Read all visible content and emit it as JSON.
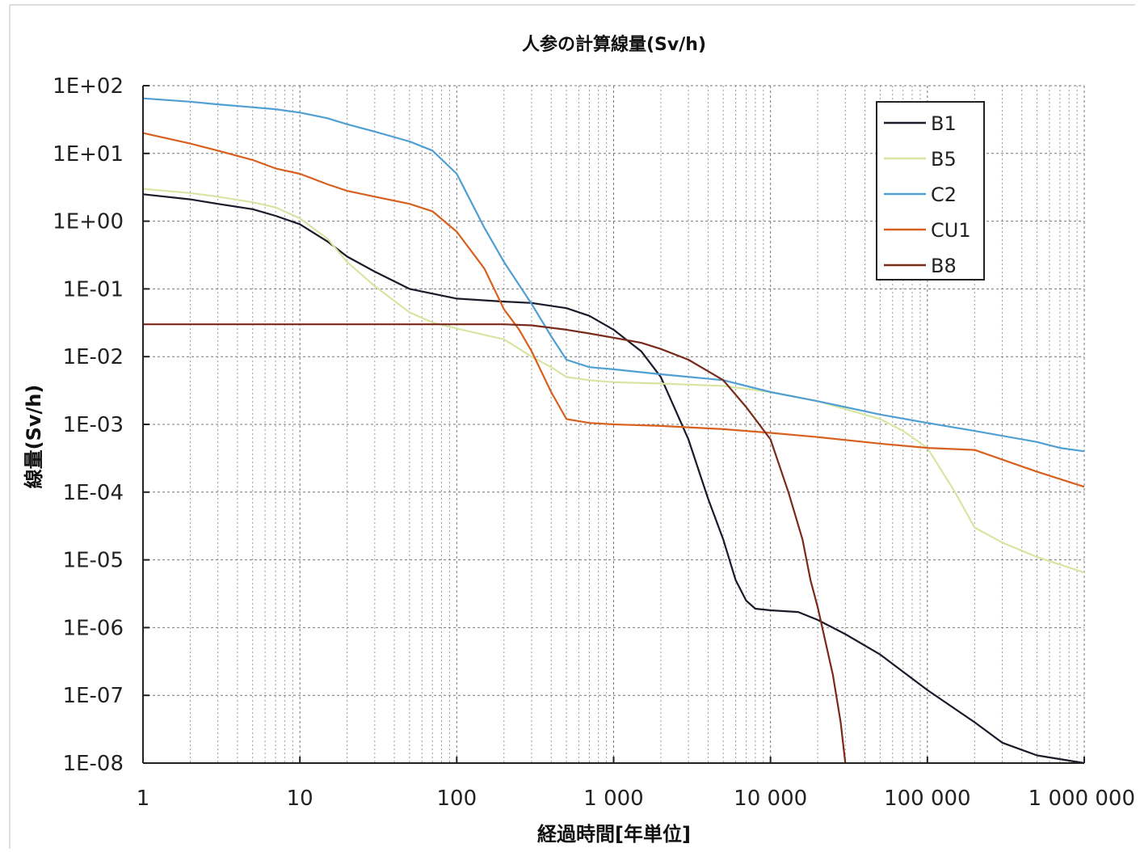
{
  "chart_data": {
    "type": "line",
    "title": "人参の計算線量(Sv/h)",
    "xlabel": "経過時間[年単位]",
    "ylabel": "線量(Sv/h)",
    "x_scale": "log",
    "y_scale": "log",
    "xlim": [
      1,
      1000000
    ],
    "ylim": [
      1e-08,
      100
    ],
    "grid": true,
    "legend_position": "top-right",
    "x_ticks": [
      {
        "value": 1,
        "label": "1"
      },
      {
        "value": 10,
        "label": "10"
      },
      {
        "value": 100,
        "label": "100"
      },
      {
        "value": 1000,
        "label": "1 000"
      },
      {
        "value": 10000,
        "label": "10 000"
      },
      {
        "value": 100000,
        "label": "100 000"
      },
      {
        "value": 1000000,
        "label": "1 000 000"
      }
    ],
    "y_ticks": [
      {
        "value": 100,
        "label": "1E+02"
      },
      {
        "value": 10,
        "label": "1E+01"
      },
      {
        "value": 1,
        "label": "1E+00"
      },
      {
        "value": 0.1,
        "label": "1E-01"
      },
      {
        "value": 0.01,
        "label": "1E-02"
      },
      {
        "value": 0.001,
        "label": "1E-03"
      },
      {
        "value": 0.0001,
        "label": "1E-04"
      },
      {
        "value": 1e-05,
        "label": "1E-05"
      },
      {
        "value": 1e-06,
        "label": "1E-06"
      },
      {
        "value": 1e-07,
        "label": "1E-07"
      },
      {
        "value": 1e-08,
        "label": "1E-08"
      }
    ],
    "series": [
      {
        "name": "B1",
        "color": "#1a1a2a",
        "points": [
          [
            1,
            2.5
          ],
          [
            2,
            2.1
          ],
          [
            3,
            1.8
          ],
          [
            5,
            1.5
          ],
          [
            7,
            1.2
          ],
          [
            10,
            0.9
          ],
          [
            15,
            0.5
          ],
          [
            20,
            0.3
          ],
          [
            30,
            0.18
          ],
          [
            50,
            0.1
          ],
          [
            100,
            0.072
          ],
          [
            200,
            0.065
          ],
          [
            300,
            0.062
          ],
          [
            500,
            0.052
          ],
          [
            700,
            0.04
          ],
          [
            1000,
            0.025
          ],
          [
            1500,
            0.012
          ],
          [
            2000,
            0.005
          ],
          [
            3000,
            0.0006
          ],
          [
            4000,
            8e-05
          ],
          [
            5000,
            2e-05
          ],
          [
            6000,
            5e-06
          ],
          [
            7000,
            2.5e-06
          ],
          [
            8000,
            1.9e-06
          ],
          [
            10000,
            1.8e-06
          ],
          [
            15000,
            1.7e-06
          ],
          [
            20000,
            1.3e-06
          ],
          [
            30000,
            8e-07
          ],
          [
            50000,
            4e-07
          ],
          [
            100000,
            1.2e-07
          ],
          [
            200000,
            4e-08
          ],
          [
            300000,
            2e-08
          ],
          [
            500000,
            1.3e-08
          ],
          [
            1000000,
            1e-08
          ]
        ]
      },
      {
        "name": "B5",
        "color": "#d6e6a2",
        "points": [
          [
            1,
            3.0
          ],
          [
            2,
            2.6
          ],
          [
            3,
            2.3
          ],
          [
            5,
            1.9
          ],
          [
            7,
            1.6
          ],
          [
            10,
            1.1
          ],
          [
            15,
            0.55
          ],
          [
            20,
            0.25
          ],
          [
            30,
            0.11
          ],
          [
            50,
            0.045
          ],
          [
            70,
            0.032
          ],
          [
            100,
            0.026
          ],
          [
            200,
            0.018
          ],
          [
            300,
            0.01
          ],
          [
            400,
            0.007
          ],
          [
            500,
            0.005
          ],
          [
            700,
            0.0045
          ],
          [
            1000,
            0.0042
          ],
          [
            2000,
            0.004
          ],
          [
            5000,
            0.0037
          ],
          [
            10000,
            0.003
          ],
          [
            20000,
            0.0022
          ],
          [
            50000,
            0.0012
          ],
          [
            70000,
            0.0008
          ],
          [
            100000,
            0.00045
          ],
          [
            150000,
            0.0001
          ],
          [
            200000,
            3e-05
          ],
          [
            300000,
            1.8e-05
          ],
          [
            500000,
            1.1e-05
          ],
          [
            1000000,
            6.5e-06
          ]
        ]
      },
      {
        "name": "C2",
        "color": "#4f9fd2",
        "points": [
          [
            1,
            65
          ],
          [
            2,
            58
          ],
          [
            3,
            53
          ],
          [
            5,
            48
          ],
          [
            7,
            45
          ],
          [
            10,
            40
          ],
          [
            15,
            33
          ],
          [
            20,
            27
          ],
          [
            30,
            21
          ],
          [
            50,
            15
          ],
          [
            70,
            11
          ],
          [
            100,
            5
          ],
          [
            150,
            0.8
          ],
          [
            200,
            0.25
          ],
          [
            300,
            0.06
          ],
          [
            400,
            0.02
          ],
          [
            500,
            0.009
          ],
          [
            700,
            0.007
          ],
          [
            1000,
            0.0065
          ],
          [
            2000,
            0.0055
          ],
          [
            5000,
            0.0045
          ],
          [
            10000,
            0.003
          ],
          [
            20000,
            0.0022
          ],
          [
            50000,
            0.0014
          ],
          [
            100000,
            0.00105
          ],
          [
            200000,
            0.0008
          ],
          [
            500000,
            0.00055
          ],
          [
            700000,
            0.00045
          ],
          [
            1000000,
            0.0004
          ]
        ]
      },
      {
        "name": "CU1",
        "color": "#d8601e",
        "points": [
          [
            1,
            20
          ],
          [
            2,
            14
          ],
          [
            3,
            11
          ],
          [
            5,
            8
          ],
          [
            7,
            6
          ],
          [
            10,
            5
          ],
          [
            15,
            3.5
          ],
          [
            20,
            2.8
          ],
          [
            30,
            2.3
          ],
          [
            50,
            1.8
          ],
          [
            70,
            1.4
          ],
          [
            100,
            0.7
          ],
          [
            150,
            0.2
          ],
          [
            200,
            0.05
          ],
          [
            250,
            0.025
          ],
          [
            300,
            0.012
          ],
          [
            400,
            0.003
          ],
          [
            500,
            0.0012
          ],
          [
            700,
            0.00105
          ],
          [
            1000,
            0.001
          ],
          [
            2000,
            0.00095
          ],
          [
            5000,
            0.00085
          ],
          [
            10000,
            0.00075
          ],
          [
            20000,
            0.00065
          ],
          [
            50000,
            0.00052
          ],
          [
            100000,
            0.00045
          ],
          [
            200000,
            0.00042
          ],
          [
            500000,
            0.0002
          ],
          [
            1000000,
            0.00012
          ]
        ]
      },
      {
        "name": "B8",
        "color": "#7a2a1a",
        "points": [
          [
            1,
            0.03
          ],
          [
            10,
            0.03
          ],
          [
            100,
            0.03
          ],
          [
            200,
            0.03
          ],
          [
            300,
            0.029
          ],
          [
            500,
            0.025
          ],
          [
            700,
            0.022
          ],
          [
            1000,
            0.019
          ],
          [
            1500,
            0.016
          ],
          [
            2000,
            0.013
          ],
          [
            3000,
            0.009
          ],
          [
            5000,
            0.0045
          ],
          [
            7000,
            0.0018
          ],
          [
            10000,
            0.0006
          ],
          [
            13000,
            0.0001
          ],
          [
            16000,
            2e-05
          ],
          [
            18000,
            5e-06
          ],
          [
            20000,
            2e-06
          ],
          [
            25000,
            2e-07
          ],
          [
            28000,
            4e-08
          ],
          [
            30000,
            1e-08
          ]
        ]
      }
    ]
  }
}
